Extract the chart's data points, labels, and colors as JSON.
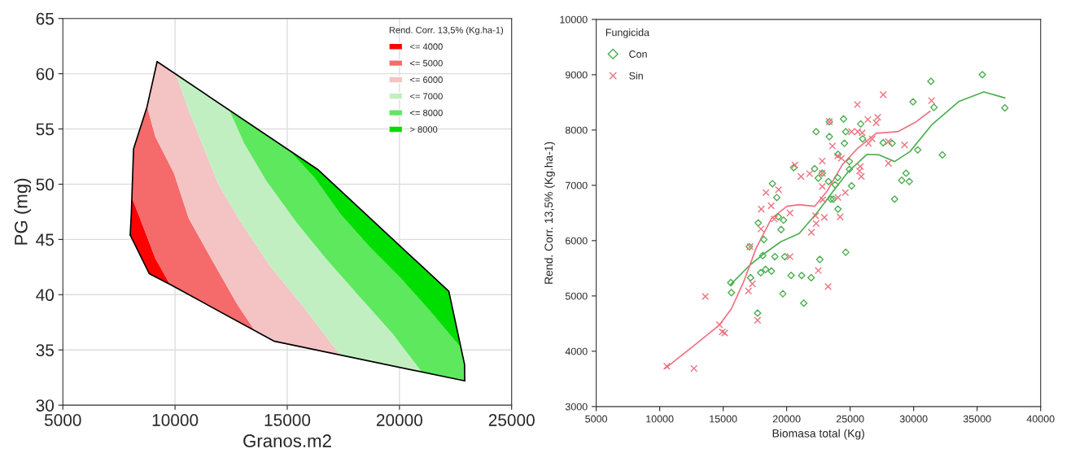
{
  "chart_data": [
    {
      "type": "area",
      "xlabel": "Granos.m2",
      "ylabel": "PG (mg)",
      "legend_title": "Rend. Corr. 13,5% (Kg.ha-1)",
      "legend": "top right",
      "grid": true,
      "xlim": [
        5000,
        25000
      ],
      "xticks": [
        5000,
        10000,
        15000,
        20000,
        25000
      ],
      "ylim": [
        30,
        65
      ],
      "yticks": [
        30,
        35,
        40,
        45,
        50,
        55,
        60,
        65
      ],
      "series": [
        {
          "type": "area",
          "name": "<= 4000",
          "color": "#ff0000",
          "x": [
            8080,
            8630,
            9120,
            9780,
            8850,
            8000,
            8050
          ],
          "values": [
            48.8,
            45.9,
            43.3,
            40.9,
            41.9,
            45.4,
            47.3
          ]
        },
        {
          "type": "area",
          "name": "<= 5000",
          "color": "#f56a6a",
          "x": [
            8760,
            9120,
            9950,
            10610,
            11600,
            12750,
            13570,
            9780,
            9120,
            8630,
            8080,
            8150
          ],
          "values": [
            57.0,
            54.3,
            51.0,
            46.9,
            43.3,
            39.2,
            36.7,
            40.9,
            43.3,
            45.9,
            48.8,
            53.2
          ]
        },
        {
          "type": "area",
          "name": "<= 6000",
          "color": "#f4c3c3",
          "x": [
            8760,
            9200,
            10030,
            10610,
            11930,
            12920,
            14230,
            15720,
            17370,
            14400,
            13570,
            12750,
            11600,
            10610,
            9950,
            9120
          ],
          "values": [
            57.0,
            61.1,
            60.0,
            56.7,
            50.0,
            46.6,
            42.6,
            38.9,
            34.5,
            35.8,
            36.7,
            39.2,
            43.3,
            46.9,
            51.0,
            54.3
          ]
        },
        {
          "type": "area",
          "name": "<= 7000",
          "color": "#c2efc2",
          "x": [
            10030,
            12420,
            13080,
            14070,
            15390,
            16710,
            18190,
            19680,
            21000,
            17370,
            15720,
            14230,
            12920,
            11930,
            10610
          ],
          "values": [
            60.0,
            56.7,
            53.7,
            50.3,
            46.6,
            43.3,
            39.9,
            36.5,
            33.0,
            34.5,
            38.9,
            42.6,
            46.6,
            50.0,
            56.7
          ]
        },
        {
          "type": "area",
          "name": "<= 8000",
          "color": "#5ee85e",
          "x": [
            12420,
            15060,
            16210,
            17370,
            18690,
            20010,
            21330,
            22740,
            22900,
            22900,
            21000,
            19680,
            18190,
            16710,
            15390,
            14070,
            13080
          ],
          "values": [
            56.7,
            53.1,
            50.6,
            47.3,
            44.3,
            41.6,
            38.6,
            35.2,
            33.7,
            32.2,
            33.0,
            36.5,
            39.9,
            43.3,
            46.6,
            50.3,
            53.7
          ]
        },
        {
          "type": "area",
          "name": "> 8000",
          "color": "#00dd00",
          "x": [
            15060,
            16380,
            22200,
            22740,
            21330,
            20010,
            18690,
            17370,
            16210
          ],
          "values": [
            53.1,
            51.3,
            40.3,
            35.2,
            38.6,
            41.6,
            44.3,
            47.3,
            50.6
          ]
        },
        {
          "type": "line",
          "color": "#000000",
          "x": [
            8000,
            8050,
            8150,
            8750,
            9200,
            16380,
            22200,
            22900,
            22910
          ],
          "values": [
            45.4,
            47.3,
            53.2,
            57.0,
            61.1,
            51.3,
            40.3,
            33.7,
            32.2
          ]
        },
        {
          "type": "line",
          "color": "#000000",
          "x": [
            8000,
            8850,
            9800,
            14400,
            22910
          ],
          "values": [
            45.4,
            41.9,
            40.9,
            35.8,
            32.2
          ]
        }
      ]
    },
    {
      "type": "scatter",
      "xlabel": "Biomasa total (Kg)",
      "ylabel": "Rend. Corr. 13,5% (Kg.ha-1)",
      "legend_title": "Fungicida",
      "legend": "top left",
      "grid": false,
      "xlim": [
        5000,
        40000
      ],
      "xticks": [
        5000,
        10000,
        15000,
        20000,
        25000,
        30000,
        35000,
        40000
      ],
      "ylim": [
        3000,
        10000
      ],
      "yticks": [
        3000,
        4000,
        5000,
        6000,
        7000,
        8000,
        9000,
        10000
      ],
      "series": [
        {
          "type": "scatter",
          "name": "Con",
          "color": "#4caf50",
          "marker": "diamond",
          "x": [
            31360,
            29950,
            31600,
            35410,
            37180,
            30320,
            32260,
            22320,
            23360,
            24480,
            25830,
            24650,
            24550,
            25980,
            27600,
            28300,
            22200,
            20550,
            22490,
            23290,
            23820,
            24020,
            24940,
            24940,
            25110,
            24040,
            29400,
            29060,
            29660,
            28500,
            18880,
            19220,
            19340,
            19750,
            17760,
            19560,
            18200,
            17060,
            23480,
            23680,
            24040,
            24650,
            22610,
            18120,
            19070,
            19850,
            18340,
            17960,
            18800,
            17160,
            20350,
            21180,
            21930,
            15600,
            15650,
            19700,
            21350,
            17710,
            23360,
            22800
          ],
          "values": [
            8880,
            8510,
            8410,
            9000,
            8400,
            7640,
            7550,
            7970,
            7880,
            8200,
            8110,
            7970,
            7760,
            7840,
            7770,
            7760,
            7300,
            7320,
            7130,
            7070,
            7010,
            7140,
            7430,
            7290,
            6990,
            7560,
            7220,
            7090,
            7070,
            6750,
            7030,
            6780,
            6430,
            6370,
            6320,
            6200,
            6020,
            5890,
            6750,
            6750,
            6570,
            5790,
            5660,
            5730,
            5710,
            5710,
            5480,
            5420,
            5450,
            5330,
            5370,
            5370,
            5330,
            5240,
            5060,
            5040,
            4870,
            4690,
            8150,
            7220
          ]
        },
        {
          "type": "scatter",
          "name": "Sin",
          "color": "#f07080",
          "marker": "cross",
          "x": [
            27600,
            25570,
            31410,
            23360,
            26390,
            27170,
            27050,
            25110,
            25590,
            25950,
            26440,
            26730,
            28010,
            29280,
            28010,
            23600,
            24020,
            24310,
            25790,
            25880,
            25740,
            20650,
            21810,
            21130,
            22800,
            22800,
            22800,
            19360,
            18370,
            18780,
            18000,
            19020,
            20260,
            24040,
            24620,
            24210,
            22970,
            22270,
            22320,
            21950,
            22850,
            17980,
            17110,
            20260,
            22490,
            17300,
            16990,
            23260,
            13590,
            14710,
            14930,
            15120,
            17710,
            10560,
            12700
          ],
          "values": [
            8640,
            8460,
            8530,
            8150,
            8190,
            8230,
            8130,
            7970,
            7970,
            7950,
            7760,
            7840,
            7790,
            7730,
            7400,
            7710,
            7530,
            7490,
            7340,
            7160,
            7260,
            7370,
            7210,
            7160,
            7440,
            7220,
            6980,
            6920,
            6870,
            6630,
            6570,
            6390,
            6500,
            6780,
            6870,
            6430,
            6420,
            6450,
            6310,
            6150,
            6740,
            6210,
            5890,
            5710,
            5460,
            5220,
            5090,
            5170,
            4990,
            4480,
            4350,
            4330,
            4560,
            3730,
            3690
          ]
        },
        {
          "type": "line",
          "color": "#4caf50",
          "x": [
            15600,
            17110,
            18080,
            19530,
            20990,
            22440,
            23650,
            24860,
            26320,
            27290,
            28500,
            29710,
            31410,
            33590,
            35530,
            37180
          ],
          "values": [
            5210,
            5560,
            5740,
            5980,
            6130,
            6520,
            6890,
            7250,
            7560,
            7550,
            7430,
            7610,
            8090,
            8520,
            8690,
            8580
          ]
        },
        {
          "type": "line",
          "color": "#f07080",
          "x": [
            10440,
            12740,
            14680,
            15650,
            16620,
            17590,
            18800,
            20020,
            20990,
            22200,
            23170,
            24380,
            25590,
            27050,
            28740,
            30200,
            31290
          ],
          "values": [
            3690,
            4110,
            4470,
            4770,
            5260,
            5860,
            6400,
            6620,
            6650,
            6620,
            6890,
            7370,
            7670,
            7940,
            7970,
            8150,
            8340
          ]
        }
      ]
    }
  ]
}
